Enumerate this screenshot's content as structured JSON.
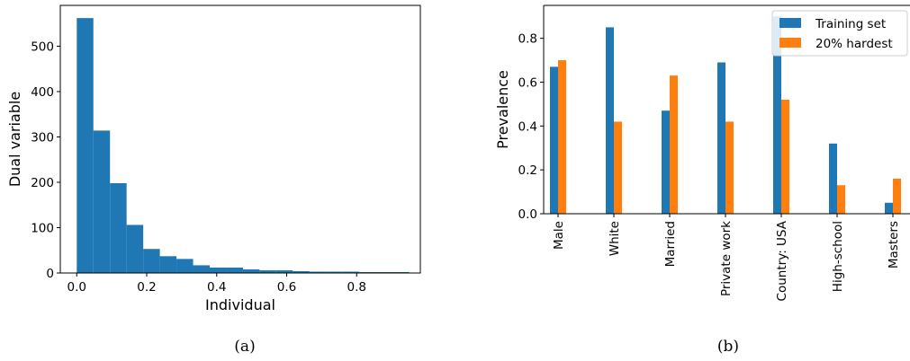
{
  "chart_data": [
    {
      "type": "bar",
      "caption": "(a)",
      "xlabel": "Individual",
      "ylabel": "Dual variable",
      "xlim": [
        -0.047,
        0.982
      ],
      "ylim": [
        0,
        590
      ],
      "xticks": [
        0.0,
        0.2,
        0.4,
        0.6,
        0.8
      ],
      "xtick_labels": [
        "0.0",
        "0.2",
        "0.4",
        "0.6",
        "0.8"
      ],
      "yticks": [
        0,
        100,
        200,
        300,
        400,
        500
      ],
      "ytick_labels": [
        "0",
        "100",
        "200",
        "300",
        "400",
        "500"
      ],
      "bin_edges": [
        0.0,
        0.0475,
        0.095,
        0.1425,
        0.19,
        0.2375,
        0.285,
        0.3325,
        0.38,
        0.4275,
        0.475,
        0.5225,
        0.57,
        0.6175,
        0.665,
        0.7125,
        0.76,
        0.8075,
        0.855,
        0.9025,
        0.95
      ],
      "values": [
        562,
        314,
        198,
        106,
        53,
        37,
        31,
        17,
        12,
        12,
        8,
        6,
        6,
        4,
        3,
        3,
        3,
        2,
        2,
        2
      ],
      "color": "#1f77b4"
    },
    {
      "type": "bar",
      "caption": "(b)",
      "xlabel": "",
      "ylabel": "Prevalence",
      "ylim": [
        0,
        0.95
      ],
      "yticks": [
        0.0,
        0.2,
        0.4,
        0.6,
        0.8
      ],
      "ytick_labels": [
        "0.0",
        "0.2",
        "0.4",
        "0.6",
        "0.8"
      ],
      "categories": [
        "Male",
        "White",
        "Married",
        "Private work",
        "Country: USA",
        "High-school",
        "Masters"
      ],
      "series": [
        {
          "name": "Training set",
          "color": "#1f77b4",
          "values": [
            0.67,
            0.85,
            0.47,
            0.69,
            0.9,
            0.32,
            0.05
          ]
        },
        {
          "name": "20% hardest",
          "color": "#ff7f0e",
          "values": [
            0.7,
            0.42,
            0.63,
            0.42,
            0.52,
            0.13,
            0.16
          ]
        }
      ],
      "legend": "top-right"
    }
  ]
}
